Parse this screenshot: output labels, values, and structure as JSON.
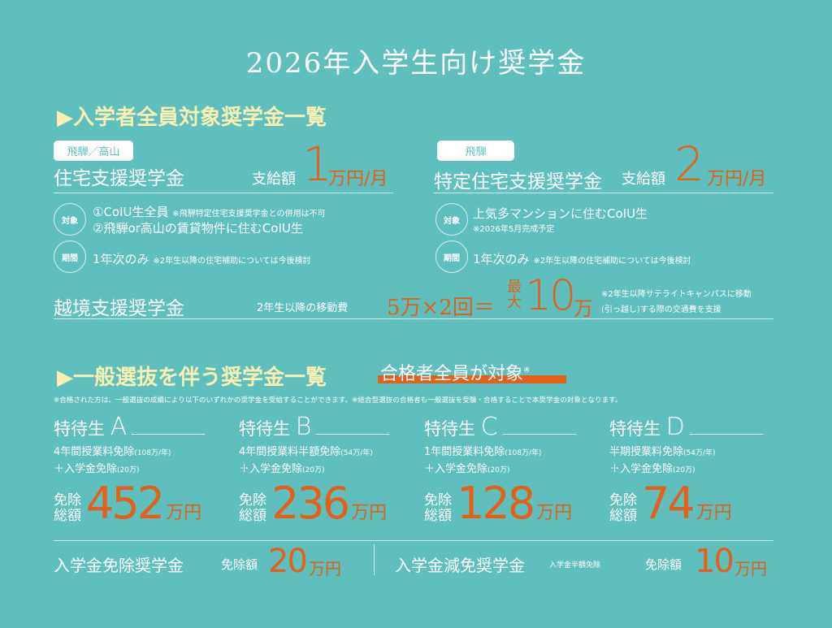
{
  "title": "2026年入学生向け奨学金",
  "section1": {
    "heading": "入学者全員対象奨学金一覧",
    "housing": {
      "tag": "飛騨／高山",
      "name": "住宅支援奨学金",
      "amount_label": "支給額",
      "amount": "1",
      "unit": "万円/月",
      "target_label": "対象",
      "target1": "①CoIU生全員",
      "target1_note": "※飛騨特定住宅支援奨学金との併用は不可",
      "target2": "②飛騨or高山の賃貸物件に住むCoIU生",
      "period_label": "期間",
      "period": "1年次のみ",
      "period_note": "※2年生以降の住宅補助については今後検討"
    },
    "special": {
      "tag": "飛騨",
      "name": "特定住宅支援奨学金",
      "amount_label": "支給額",
      "amount": "2",
      "unit": "万円/月",
      "target_label": "対象",
      "target": "上気多マンションに住むCoIU生",
      "target_note": "※2026年5月完成予定",
      "period_label": "期間",
      "period": "1年次のみ",
      "period_note": "※2年生以降の住宅補助については今後検討"
    },
    "cross": {
      "name": "越境支援奨学金",
      "desc": "2年生以降の移動費",
      "formula": "5万×2回＝",
      "max": "最大",
      "amount": "10",
      "unit": "万",
      "note1": "※2年生以降サテライトキャンパスに移動",
      "note2": "(引っ越し)する際の交通費を支援"
    }
  },
  "section2": {
    "heading": "一般選抜を伴う奨学金一覧",
    "highlight": "合格者全員が対象",
    "mark": "※",
    "note": "※合格された方は、一般選抜の成績により以下のいずれかの奨学金を受給することができます。※総合型選抜の合格者も一般選抜を受験・合格することで本奨学金の対象となります。",
    "tiers": [
      {
        "prefix": "特待生",
        "letter": "A",
        "line1": "4年間授業料免除",
        "line1_note": "(108万/年)",
        "line2": "＋入学金免除",
        "line2_note": "(20万)",
        "total_label1": "免除",
        "total_label2": "総額",
        "total": "452",
        "unit": "万円"
      },
      {
        "prefix": "特待生",
        "letter": "B",
        "line1": "4年間授業料半額免除",
        "line1_note": "(54万/年)",
        "line2": "＋入学金免除",
        "line2_note": "(20万)",
        "total_label1": "免除",
        "total_label2": "総額",
        "total": "236",
        "unit": "万円"
      },
      {
        "prefix": "特待生",
        "letter": "C",
        "line1": "1年間授業料免除",
        "line1_note": "(108万/年)",
        "line2": "＋入学金免除",
        "line2_note": "(20万)",
        "total_label1": "免除",
        "total_label2": "総額",
        "total": "128",
        "unit": "万円"
      },
      {
        "prefix": "特待生",
        "letter": "D",
        "line1": "半期授業料免除",
        "line1_note": "(54万/年)",
        "line2": "＋入学金免除",
        "line2_note": "(20万)",
        "total_label1": "免除",
        "total_label2": "総額",
        "total": "74",
        "unit": "万円"
      }
    ],
    "entrance": {
      "name": "入学金免除奨学金",
      "label": "免除額",
      "amount": "20",
      "unit": "万円"
    },
    "reduction": {
      "name": "入学金減免奨学金",
      "sub": "入学金半額免除",
      "label": "免除額",
      "amount": "10",
      "unit": "万円"
    }
  },
  "colors": {
    "background": "#5ebfbc",
    "accent": "#e2601c",
    "heading": "#f6f0b4"
  }
}
